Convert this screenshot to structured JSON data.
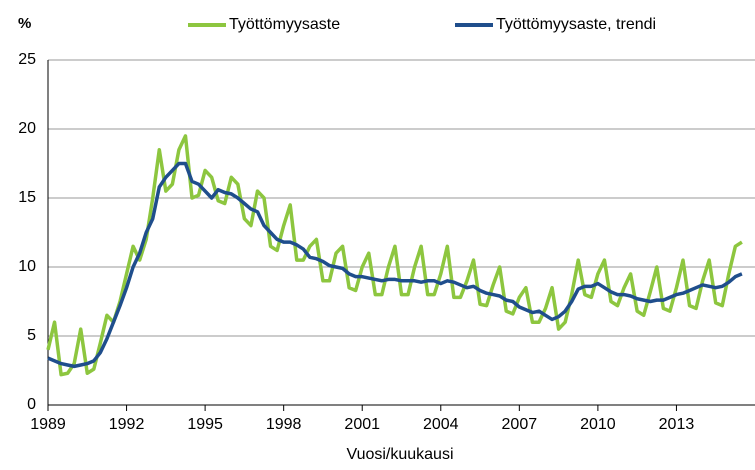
{
  "chart_data": {
    "type": "line",
    "y_unit": "%",
    "x_label": "Vuosi/kuukausi",
    "x": [
      1989,
      1989.25,
      1989.5,
      1989.75,
      1990,
      1990.25,
      1990.5,
      1990.75,
      1991,
      1991.25,
      1991.5,
      1991.75,
      1992,
      1992.25,
      1992.5,
      1992.75,
      1993,
      1993.25,
      1993.5,
      1993.75,
      1994,
      1994.25,
      1994.5,
      1994.75,
      1995,
      1995.25,
      1995.5,
      1995.75,
      1996,
      1996.25,
      1996.5,
      1996.75,
      1997,
      1997.25,
      1997.5,
      1997.75,
      1998,
      1998.25,
      1998.5,
      1998.75,
      1999,
      1999.25,
      1999.5,
      1999.75,
      2000,
      2000.25,
      2000.5,
      2000.75,
      2001,
      2001.25,
      2001.5,
      2001.75,
      2002,
      2002.25,
      2002.5,
      2002.75,
      2003,
      2003.25,
      2003.5,
      2003.75,
      2004,
      2004.25,
      2004.5,
      2004.75,
      2005,
      2005.25,
      2005.5,
      2005.75,
      2006,
      2006.25,
      2006.5,
      2006.75,
      2007,
      2007.25,
      2007.5,
      2007.75,
      2008,
      2008.25,
      2008.5,
      2008.75,
      2009,
      2009.25,
      2009.5,
      2009.75,
      2010,
      2010.25,
      2010.5,
      2010.75,
      2011,
      2011.25,
      2011.5,
      2011.75,
      2012,
      2012.25,
      2012.5,
      2012.75,
      2013,
      2013.25,
      2013.5,
      2013.75,
      2014,
      2014.25,
      2014.5,
      2014.75,
      2015,
      2015.25,
      2015.5
    ],
    "series": [
      {
        "name": "Työttömyysaste",
        "color": "#8dc63f",
        "width": 3.5,
        "values": [
          4.0,
          6.0,
          2.2,
          2.3,
          3.0,
          5.5,
          2.3,
          2.6,
          4.5,
          6.5,
          6.0,
          7.5,
          9.5,
          11.5,
          10.5,
          12.0,
          15.0,
          18.5,
          15.5,
          16.0,
          18.5,
          19.5,
          15.0,
          15.2,
          17.0,
          16.5,
          14.8,
          14.6,
          16.5,
          16.0,
          13.5,
          13.0,
          15.5,
          15.0,
          11.5,
          11.2,
          13.0,
          14.5,
          10.5,
          10.5,
          11.5,
          12.0,
          9.0,
          9.0,
          11.0,
          11.5,
          8.5,
          8.3,
          10.0,
          11.0,
          8.0,
          8.0,
          10.0,
          11.5,
          8.0,
          8.0,
          10.0,
          11.5,
          8.0,
          8.0,
          9.5,
          11.5,
          7.8,
          7.8,
          9.0,
          10.5,
          7.3,
          7.2,
          8.7,
          10.0,
          6.8,
          6.6,
          7.8,
          8.5,
          6.0,
          6.0,
          7.0,
          8.5,
          5.5,
          6.0,
          8.0,
          10.5,
          8.0,
          7.8,
          9.5,
          10.5,
          7.5,
          7.2,
          8.5,
          9.5,
          6.8,
          6.5,
          8.2,
          10.0,
          7.0,
          6.8,
          8.5,
          10.5,
          7.2,
          7.0,
          9.0,
          10.5,
          7.4,
          7.2,
          9.5,
          11.5,
          11.8
        ]
      },
      {
        "name": "Työttömyysaste, trendi",
        "color": "#1f4e8c",
        "width": 3.5,
        "values": [
          3.4,
          3.2,
          3.0,
          2.9,
          2.8,
          2.9,
          3.0,
          3.2,
          3.8,
          4.8,
          6.0,
          7.2,
          8.5,
          10.0,
          11.0,
          12.5,
          13.5,
          15.8,
          16.5,
          17.0,
          17.5,
          17.5,
          16.2,
          16.0,
          15.5,
          15.0,
          15.6,
          15.4,
          15.3,
          15.0,
          14.6,
          14.2,
          14.0,
          13.0,
          12.5,
          12.0,
          11.8,
          11.8,
          11.6,
          11.3,
          10.7,
          10.6,
          10.4,
          10.1,
          10.0,
          9.9,
          9.5,
          9.3,
          9.3,
          9.2,
          9.1,
          9.0,
          9.1,
          9.1,
          9.0,
          9.0,
          9.0,
          8.9,
          9.0,
          9.0,
          8.8,
          9.0,
          8.9,
          8.7,
          8.5,
          8.6,
          8.3,
          8.1,
          8.0,
          7.9,
          7.6,
          7.5,
          7.1,
          6.9,
          6.7,
          6.8,
          6.5,
          6.2,
          6.4,
          6.8,
          7.5,
          8.4,
          8.6,
          8.6,
          8.8,
          8.5,
          8.2,
          8.0,
          8.0,
          7.9,
          7.7,
          7.6,
          7.5,
          7.6,
          7.6,
          7.8,
          8.0,
          8.1,
          8.3,
          8.5,
          8.7,
          8.6,
          8.5,
          8.6,
          8.9,
          9.3,
          9.5
        ]
      }
    ],
    "xlim": [
      1989,
      2016
    ],
    "xticks": [
      1989,
      1992,
      1995,
      1998,
      2001,
      2004,
      2007,
      2010,
      2013
    ],
    "ylim": [
      0,
      25
    ],
    "yticks": [
      0,
      5,
      10,
      15,
      20,
      25
    ],
    "grid": true
  }
}
